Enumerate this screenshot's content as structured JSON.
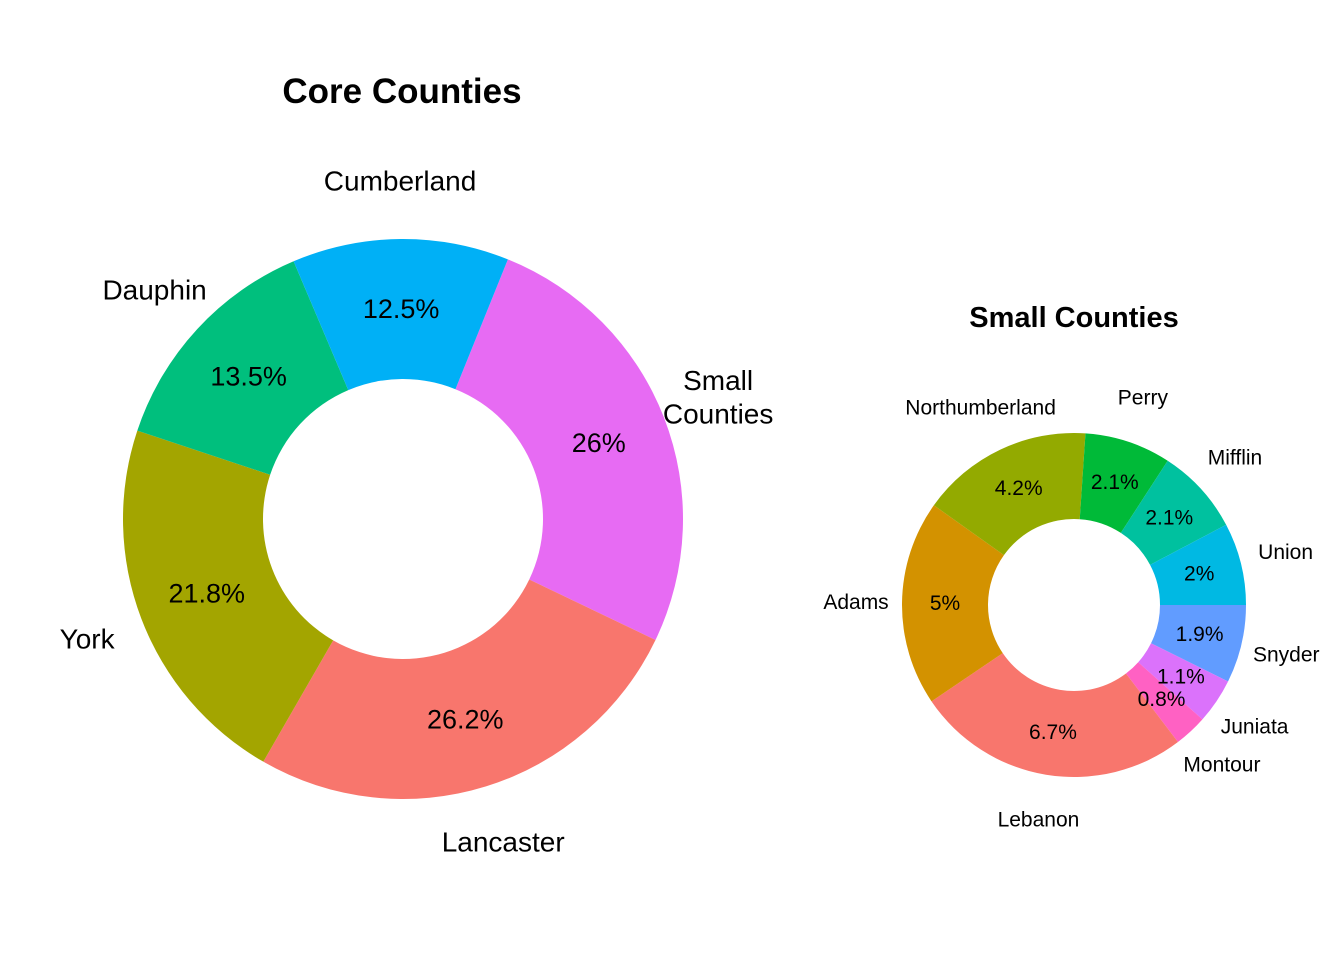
{
  "chart_data": [
    {
      "type": "pie",
      "variant": "donut",
      "title": "Core Counties",
      "slices": [
        {
          "label": "Small Counties",
          "value": 26,
          "value_label": "26%",
          "color": "#E76BF3"
        },
        {
          "label": "Lancaster",
          "value": 26.2,
          "value_label": "26.2%",
          "color": "#F8766D"
        },
        {
          "label": "York",
          "value": 21.8,
          "value_label": "21.8%",
          "color": "#A3A500"
        },
        {
          "label": "Dauphin",
          "value": 13.5,
          "value_label": "13.5%",
          "color": "#00BF7D"
        },
        {
          "label": "Cumberland",
          "value": 12.5,
          "value_label": "12.5%",
          "color": "#00B0F6"
        }
      ],
      "legend": "none"
    },
    {
      "type": "pie",
      "variant": "donut",
      "title": "Small Counties",
      "slices": [
        {
          "label": "Snyder",
          "value": 1.9,
          "value_label": "1.9%",
          "color": "#619CFF"
        },
        {
          "label": "Juniata",
          "value": 1.1,
          "value_label": "1.1%",
          "color": "#DB72FB"
        },
        {
          "label": "Montour",
          "value": 0.8,
          "value_label": "0.8%",
          "color": "#FF61C3"
        },
        {
          "label": "Lebanon",
          "value": 6.7,
          "value_label": "6.7%",
          "color": "#F8766D"
        },
        {
          "label": "Adams",
          "value": 5,
          "value_label": "5%",
          "color": "#D39200"
        },
        {
          "label": "Northumberland",
          "value": 4.2,
          "value_label": "4.2%",
          "color": "#93AA00"
        },
        {
          "label": "Perry",
          "value": 2.1,
          "value_label": "2.1%",
          "color": "#00BA38"
        },
        {
          "label": "Mifflin",
          "value": 2.1,
          "value_label": "2.1%",
          "color": "#00C19F"
        },
        {
          "label": "Union",
          "value": 2,
          "value_label": "2%",
          "color": "#00B9E3"
        }
      ],
      "legend": "none"
    }
  ]
}
